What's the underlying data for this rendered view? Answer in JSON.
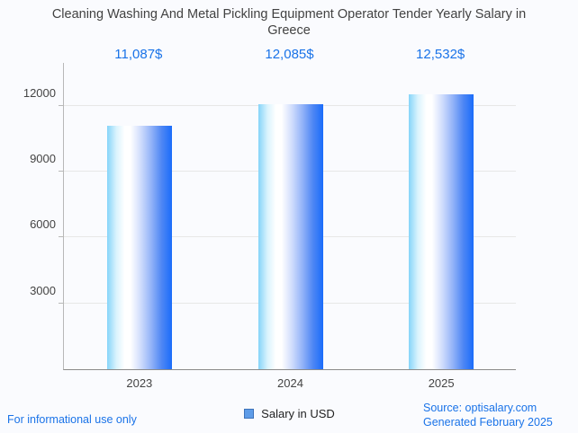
{
  "title": "Cleaning Washing And Metal Pickling Equipment Operator Tender Yearly Salary in Greece",
  "title_lines": {
    "line1": "Cleaning Washing And Metal Pickling Equipment Operator Tender Yearly Salary",
    "line2": "in Greece"
  },
  "chart_data": {
    "type": "bar",
    "title": "Cleaning Washing And Metal Pickling Equipment Operator Tender Yearly Salary in Greece",
    "categories": [
      "2023",
      "2024",
      "2025"
    ],
    "series": [
      {
        "name": "Salary in USD",
        "values": [
          11087,
          12085,
          12532
        ]
      }
    ],
    "value_labels": [
      "11,087$",
      "12,085$",
      "12,532$"
    ],
    "xlabel": "",
    "ylabel": "",
    "ylim": [
      0,
      14000
    ],
    "yticks": [
      3000,
      6000,
      9000,
      12000
    ],
    "grid": true,
    "legend_position": "bottom"
  },
  "legend": {
    "label": "Salary in USD",
    "swatch_color": "#5e9ce8",
    "swatch_border": "#3e73ba"
  },
  "footer": {
    "disclaimer": "For informational use only",
    "source": "Source: optisalary.com",
    "generated": "Generated February 2025"
  },
  "colors": {
    "accent_blue": "#1a73e8",
    "title_text": "#424242",
    "axis_text": "#444444",
    "gridline": "#e7e7e7",
    "bar_gradient_left": "#85d4f9",
    "bar_gradient_mid": "#ffffff",
    "bar_gradient_right": "#1a6cfa",
    "background": "#fafbfe"
  }
}
